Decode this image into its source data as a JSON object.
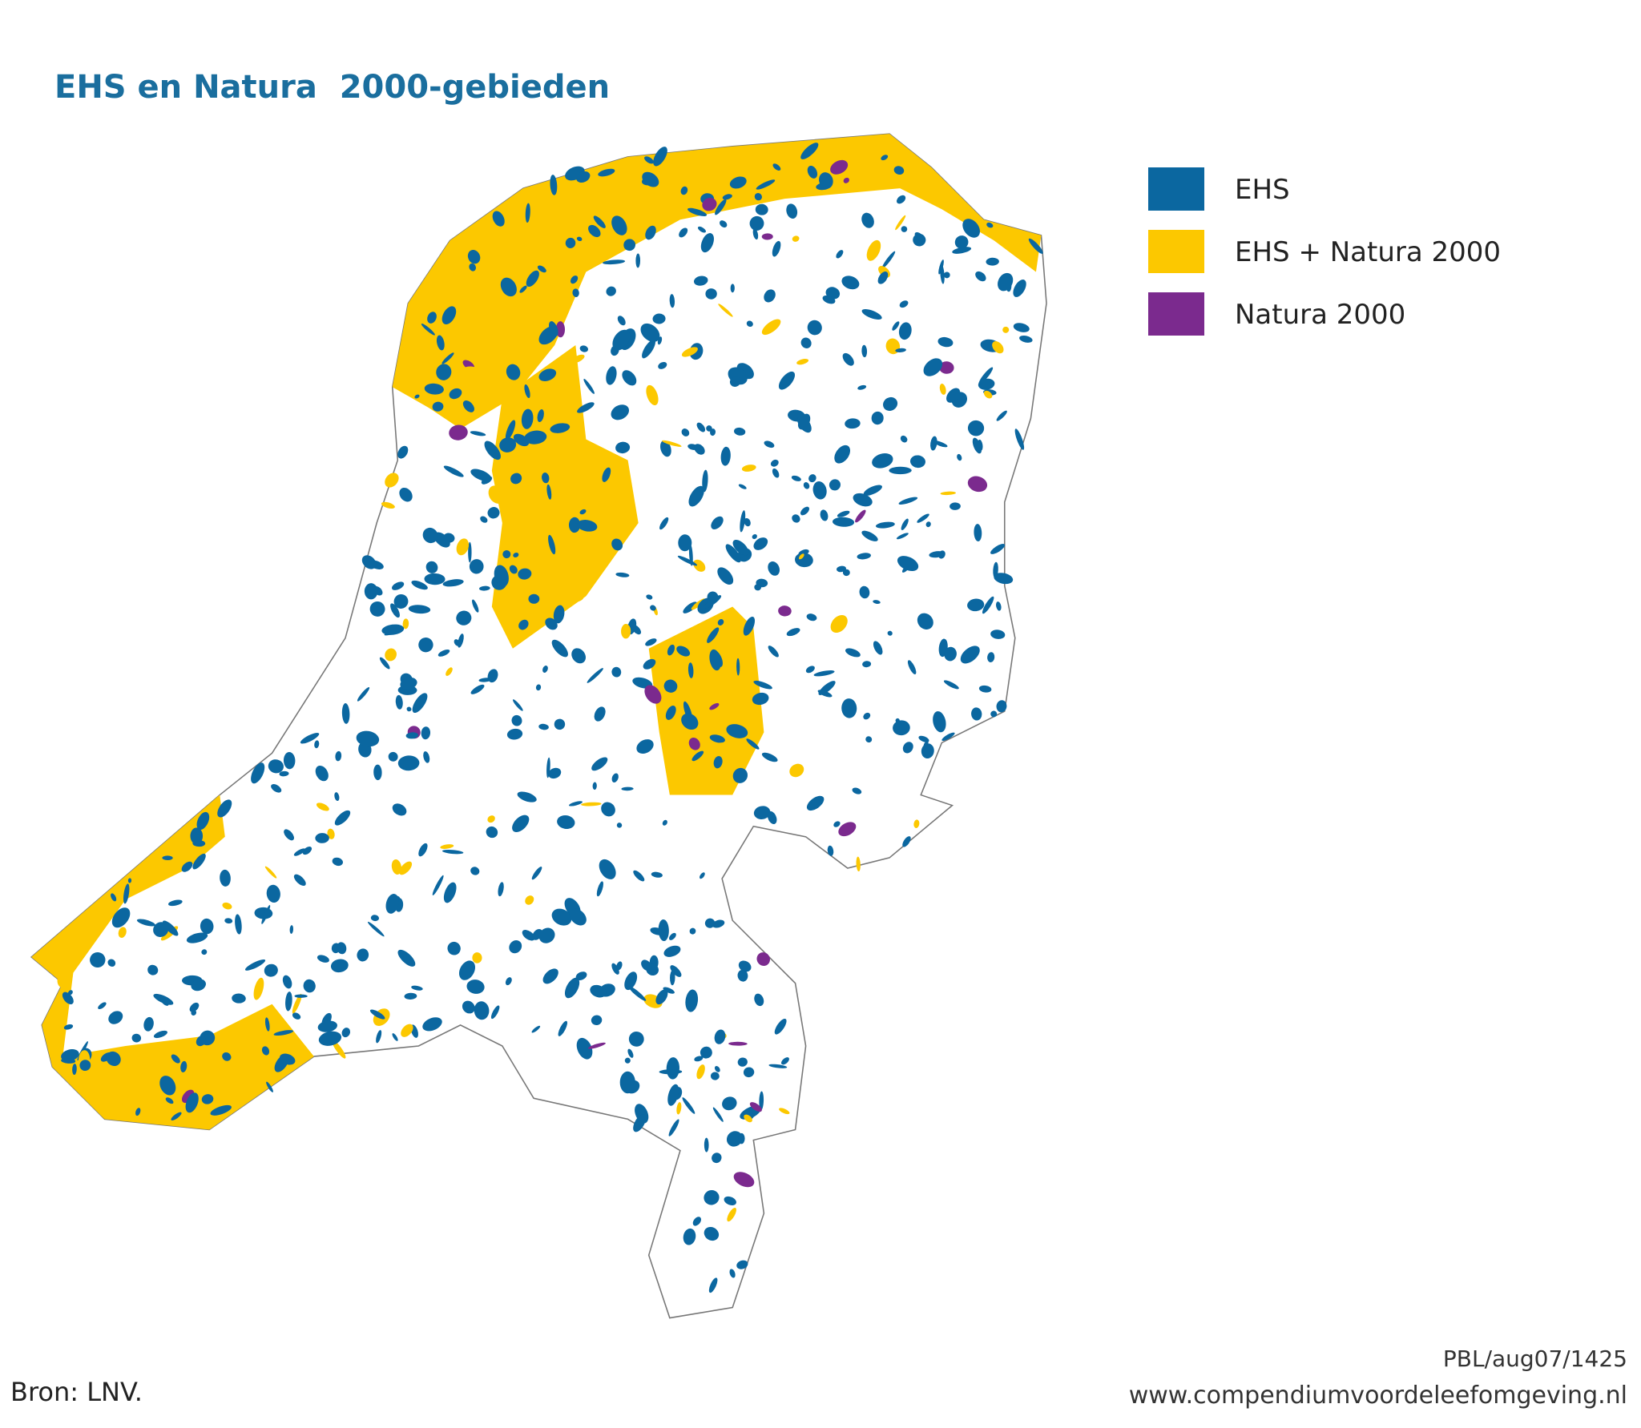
{
  "title": "EHS en Natura  2000-gebieden",
  "legend": [
    {
      "label": "EHS",
      "color": "#0b67a0"
    },
    {
      "label": "EHS + Natura 2000",
      "color": "#fcc800"
    },
    {
      "label": "Natura 2000",
      "color": "#7b2a8e"
    }
  ],
  "source": "Bron: LNV.",
  "credit": "PBL/aug07/1425",
  "url": "www.compendiumvoordeleefomgeving.nl"
}
